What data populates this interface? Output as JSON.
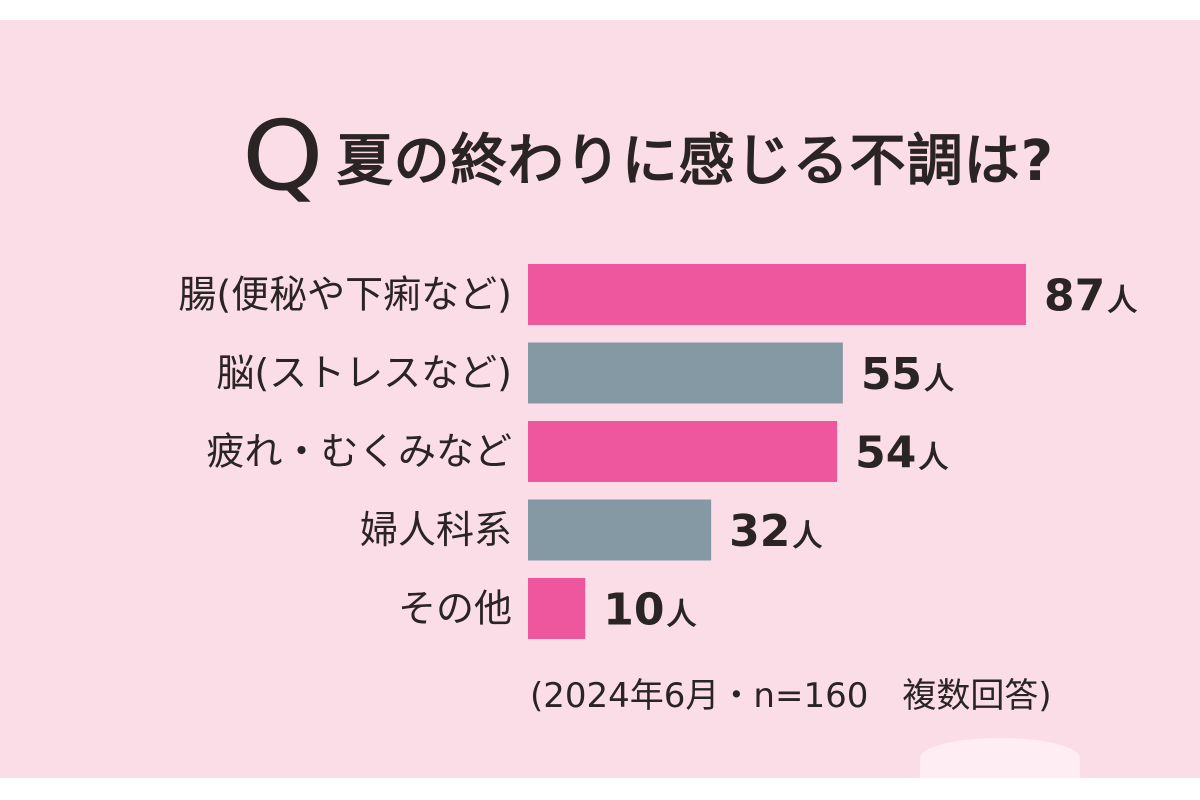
{
  "title": {
    "q_letter": "Q",
    "text": "夏の終わりに感じる不調は?"
  },
  "footnote": "(2024年6月・n=160　複数回答)",
  "colors": {
    "pink": "#ee579d",
    "gray": "#8599a4",
    "background": "#fbdde8"
  },
  "chart_data": {
    "type": "bar",
    "orientation": "horizontal",
    "categories": [
      "腸(便秘や下痢など)",
      "脳(ストレスなど)",
      "疲れ・むくみなど",
      "婦人科系",
      "その他"
    ],
    "values": [
      87,
      55,
      54,
      32,
      10
    ],
    "unit": "人",
    "bar_colors": [
      "#ee579d",
      "#8599a4",
      "#ee579d",
      "#8599a4",
      "#ee579d"
    ],
    "xlim": [
      0,
      87
    ]
  }
}
